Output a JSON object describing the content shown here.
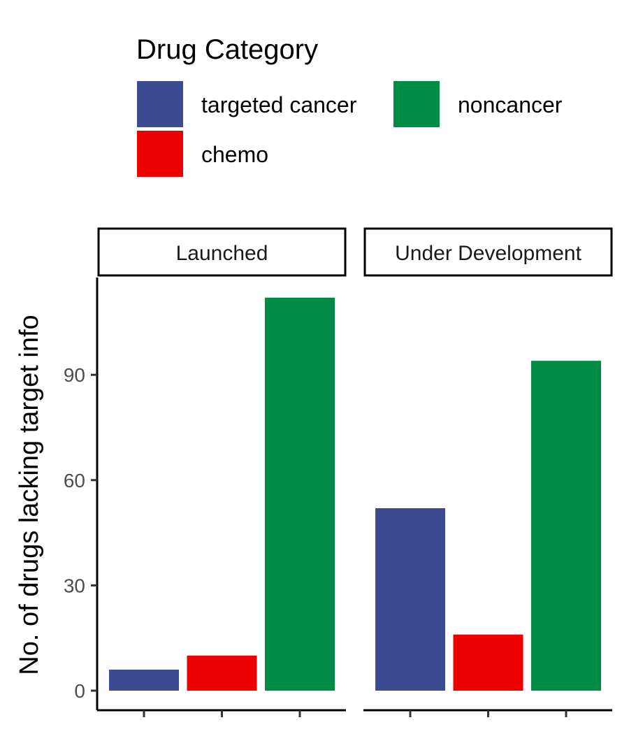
{
  "legend": {
    "title": "Drug Category",
    "items": [
      {
        "label": "targeted cancer",
        "color": "#3C4A92"
      },
      {
        "label": "noncancer",
        "color": "#008C45"
      },
      {
        "label": "chemo",
        "color": "#EE0000"
      }
    ]
  },
  "chart_data": {
    "type": "bar",
    "ylabel": "No. of drugs lacking target info",
    "ylim": [
      0,
      115
    ],
    "yticks": [
      0,
      30,
      60,
      90
    ],
    "grid": false,
    "legend_position": "top",
    "series_order": [
      "targeted cancer",
      "chemo",
      "noncancer"
    ],
    "colors": {
      "targeted cancer": "#3C4A92",
      "chemo": "#EE0000",
      "noncancer": "#008C45"
    },
    "facets": [
      {
        "label": "Launched",
        "values": {
          "targeted cancer": 6,
          "chemo": 10,
          "noncancer": 112
        }
      },
      {
        "label": "Under Development",
        "values": {
          "targeted cancer": 52,
          "chemo": 16,
          "noncancer": 94
        }
      }
    ]
  }
}
